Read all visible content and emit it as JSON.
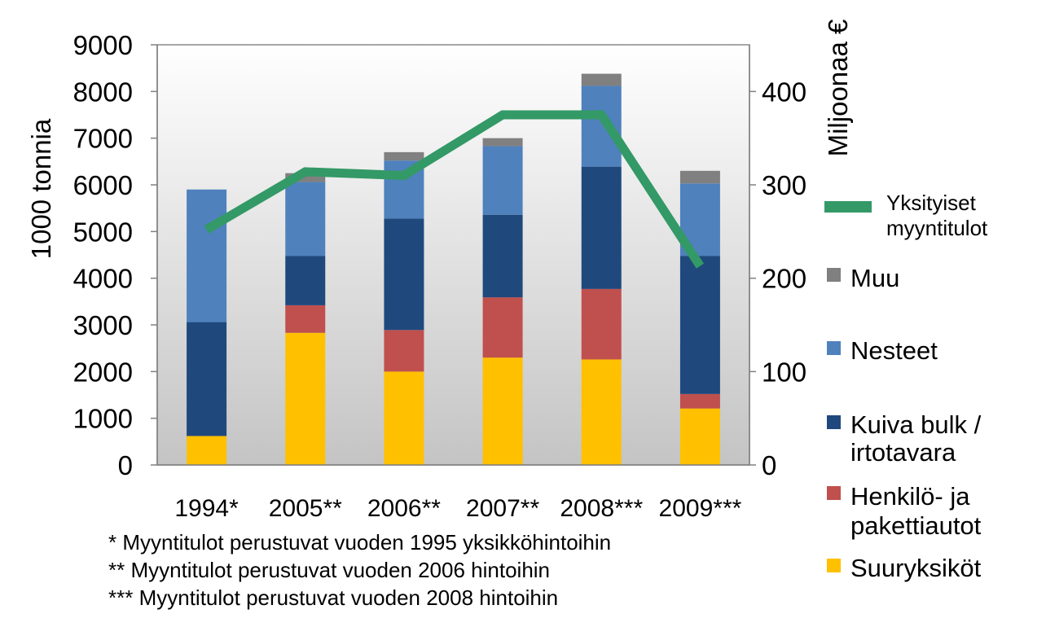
{
  "chart_data": {
    "type": "bar",
    "stacked": true,
    "categories": [
      "1994*",
      "2005**",
      "2006**",
      "2007**",
      "2008***",
      "2009***"
    ],
    "y_left": {
      "label": "1000 tonnia",
      "ylim": [
        0,
        9000
      ],
      "ticks": [
        0,
        1000,
        2000,
        3000,
        4000,
        5000,
        6000,
        7000,
        8000,
        9000
      ]
    },
    "y_right": {
      "label": "Miljoonaa €",
      "ylim": [
        0,
        450
      ],
      "ticks": [
        0,
        100,
        200,
        300,
        400
      ]
    },
    "grid": false,
    "legend_position": "right",
    "series": [
      {
        "name": "Suuryksiköt",
        "axis": "left",
        "color": "#FFC000",
        "values": [
          620,
          2830,
          2000,
          2300,
          2260,
          1210
        ]
      },
      {
        "name": "Henkilö- ja pakettiautot",
        "axis": "left",
        "color": "#C0504D",
        "values": [
          0,
          590,
          890,
          1290,
          1510,
          310
        ]
      },
      {
        "name": "Kuiva bulk / irtotavara",
        "axis": "left",
        "color": "#1F497D",
        "values": [
          2440,
          1060,
          2390,
          1770,
          2620,
          2960
        ]
      },
      {
        "name": "Nesteet",
        "axis": "left",
        "color": "#4F81BD",
        "values": [
          2840,
          1580,
          1240,
          1470,
          1730,
          1550
        ]
      },
      {
        "name": "Muu",
        "axis": "left",
        "color": "#808080",
        "values": [
          0,
          190,
          180,
          170,
          260,
          270
        ]
      }
    ],
    "line_series": {
      "name": "Yksityiset myyntitulot",
      "axis": "right",
      "color": "#339966",
      "values": [
        252,
        314,
        310,
        375,
        375,
        213
      ]
    },
    "legend": {
      "line_label_1": "Yksityiset",
      "line_label_2": "myyntitulot",
      "muu": "Muu",
      "nesteet": "Nesteet",
      "kuiva_1": "Kuiva bulk /",
      "kuiva_2": "irtotavara",
      "henkilo_1": "Henkilö- ja",
      "henkilo_2": "pakettiautot",
      "suur": "Suuryksiköt"
    }
  },
  "footnotes": [
    "* Myyntitulot perustuvat vuoden 1995 yksikköhintoihin",
    "** Myyntitulot perustuvat vuoden 2006 hintoihin",
    "*** Myyntitulot perustuvat vuoden 2008 hintoihin"
  ]
}
